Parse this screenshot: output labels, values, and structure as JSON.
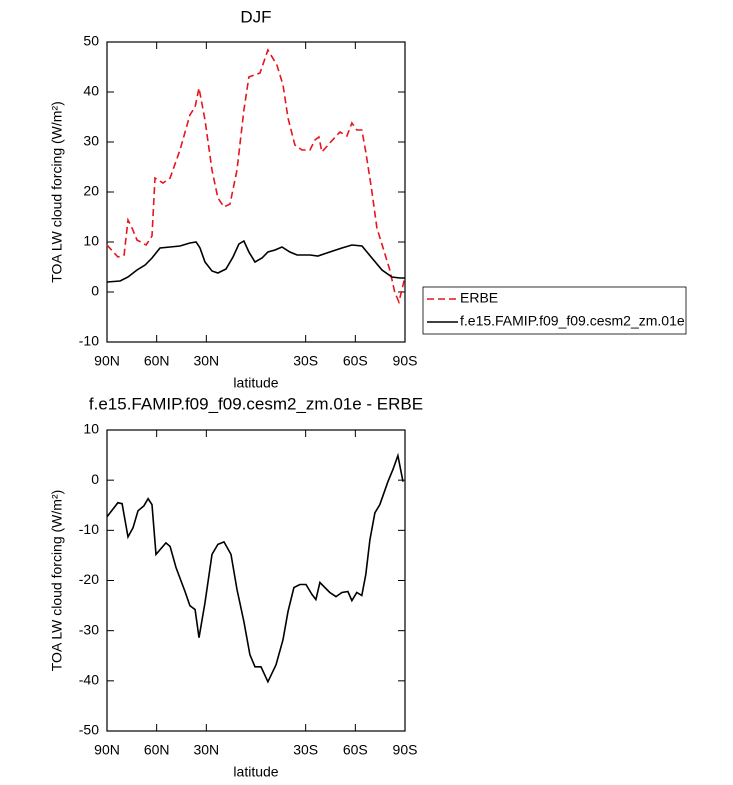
{
  "chart_data": [
    {
      "type": "line",
      "title": "DJF",
      "xlabel": "latitude",
      "ylabel": "TOA LW cloud forcing (W/m²)",
      "xlim": [
        90,
        -90
      ],
      "xticks": [
        {
          "value": 90,
          "label": "90N"
        },
        {
          "value": 60,
          "label": "60N"
        },
        {
          "value": 30,
          "label": "30N"
        },
        {
          "value": -30,
          "label": "30S"
        },
        {
          "value": -60,
          "label": "60S"
        },
        {
          "value": -90,
          "label": "90S"
        }
      ],
      "ylim": [
        -10,
        50
      ],
      "yticks": [
        -10,
        0,
        10,
        20,
        30,
        40,
        50
      ],
      "legend": "right",
      "series": [
        {
          "name": "ERBE",
          "color": "#e8141e",
          "style": "dashed",
          "x": [
            90,
            83.4,
            79.7,
            77.3,
            74.9,
            71.9,
            66.4,
            62.8,
            61,
            56.2,
            51.9,
            45.9,
            39.9,
            36.8,
            34.4,
            30.8,
            26.6,
            23,
            19.3,
            15.7,
            11.5,
            7.3,
            4.3,
            -2.4,
            -7.2,
            -12.6,
            -16.3,
            -19.3,
            -23.5,
            -27.8,
            -32.6,
            -35.6,
            -38,
            -39.8,
            -44.6,
            -50.7,
            -54.9,
            -57.9,
            -60.9,
            -63.9,
            -66.3,
            -69.9,
            -73,
            -76.6,
            -80.8,
            -83.8,
            -86.3,
            -90
          ],
          "values": [
            9.4,
            7,
            7.4,
            14.4,
            12.8,
            10.4,
            9.4,
            11.2,
            22.8,
            21.8,
            22.8,
            28.4,
            35.4,
            37,
            40.8,
            34.4,
            24.4,
            18.8,
            17,
            17.6,
            24.4,
            36.4,
            43,
            43.8,
            48.4,
            45.4,
            41.4,
            34.8,
            29.4,
            28.4,
            28.4,
            30.4,
            31,
            28,
            29.8,
            32,
            31.2,
            33.8,
            32.4,
            32.4,
            28,
            20.4,
            12.8,
            9,
            4.4,
            0,
            -2,
            3
          ]
        },
        {
          "name": "f.e15.FAMIP.f09_f09.cesm2_zm.01e",
          "color": "#000000",
          "style": "solid",
          "x": [
            90,
            82.1,
            77.3,
            71.9,
            67,
            62.8,
            58,
            51.9,
            45.9,
            39.9,
            36.2,
            33.8,
            30.8,
            26.6,
            23,
            18.1,
            13.9,
            10.3,
            7.3,
            4.3,
            0.6,
            -3.6,
            -7.2,
            -11.5,
            -15.7,
            -20.5,
            -24.8,
            -32.6,
            -37.4,
            -44.6,
            -51.9,
            -57.9,
            -64,
            -70,
            -76.1,
            -82.1,
            -86.9,
            -90
          ],
          "values": [
            2,
            2.2,
            3,
            4.4,
            5.4,
            6.8,
            8.8,
            9,
            9.2,
            9.8,
            10,
            8.8,
            6,
            4.2,
            3.8,
            4.6,
            7,
            9.6,
            10.2,
            8,
            6,
            6.8,
            8,
            8.4,
            9,
            8,
            7.4,
            7.4,
            7.2,
            8,
            8.8,
            9.4,
            9.2,
            6.8,
            4.4,
            3,
            2.8,
            2.8
          ]
        }
      ]
    },
    {
      "type": "line",
      "title": "f.e15.FAMIP.f09_f09.cesm2_zm.01e - ERBE",
      "xlabel": "latitude",
      "ylabel": "TOA LW cloud forcing (W/m²)",
      "xlim": [
        90,
        -90
      ],
      "xticks": [
        {
          "value": 90,
          "label": "90N"
        },
        {
          "value": 60,
          "label": "60N"
        },
        {
          "value": 30,
          "label": "30N"
        },
        {
          "value": -30,
          "label": "30S"
        },
        {
          "value": -60,
          "label": "60S"
        },
        {
          "value": -90,
          "label": "90S"
        }
      ],
      "ylim": [
        -50,
        10
      ],
      "yticks": [
        -50,
        -40,
        -30,
        -20,
        -10,
        0,
        10
      ],
      "series": [
        {
          "color": "#000000",
          "style": "solid",
          "x": [
            90,
            83.4,
            80.9,
            77.3,
            74.3,
            71.3,
            67.7,
            65.2,
            62.8,
            60.4,
            54.4,
            51.9,
            48.3,
            42.9,
            39.9,
            36.8,
            34.4,
            30.8,
            26.6,
            23,
            19.3,
            15.1,
            11.5,
            7.3,
            3.7,
            0.6,
            -3,
            -7.2,
            -12.1,
            -16.3,
            -19.3,
            -22.9,
            -26.5,
            -30.2,
            -33.8,
            -36.2,
            -38.6,
            -44.6,
            -48.3,
            -51.9,
            -55.5,
            -57.9,
            -60.9,
            -63.9,
            -66.3,
            -68.8,
            -71.8,
            -74.8,
            -79.7,
            -82.7,
            -85.7,
            -88.8
          ],
          "values": [
            -7.3,
            -4.5,
            -4.7,
            -11.3,
            -9.5,
            -6.1,
            -5.1,
            -3.7,
            -4.9,
            -14.8,
            -12.5,
            -13.2,
            -17.4,
            -22.2,
            -25,
            -25.8,
            -31.4,
            -24.4,
            -14.8,
            -12.8,
            -12.3,
            -14.8,
            -21.8,
            -28.2,
            -34.8,
            -37.2,
            -37.2,
            -40.2,
            -36.8,
            -31.8,
            -26.2,
            -21.4,
            -20.8,
            -20.8,
            -22.8,
            -23.8,
            -20.4,
            -22.4,
            -23.2,
            -22.4,
            -22.2,
            -24,
            -22.4,
            -23,
            -18.8,
            -11.9,
            -6.5,
            -4.9,
            -0.3,
            2.1,
            4.9,
            -0.3
          ]
        }
      ]
    }
  ]
}
